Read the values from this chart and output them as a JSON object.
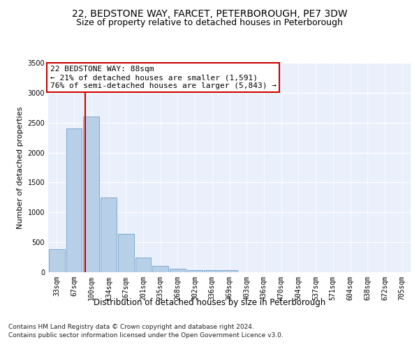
{
  "title1": "22, BEDSTONE WAY, FARCET, PETERBOROUGH, PE7 3DW",
  "title2": "Size of property relative to detached houses in Peterborough",
  "xlabel": "Distribution of detached houses by size in Peterborough",
  "ylabel": "Number of detached properties",
  "categories": [
    "33sqm",
    "67sqm",
    "100sqm",
    "134sqm",
    "167sqm",
    "201sqm",
    "235sqm",
    "268sqm",
    "302sqm",
    "336sqm",
    "369sqm",
    "403sqm",
    "436sqm",
    "470sqm",
    "504sqm",
    "537sqm",
    "571sqm",
    "604sqm",
    "638sqm",
    "672sqm",
    "705sqm"
  ],
  "values": [
    390,
    2400,
    2600,
    1250,
    640,
    250,
    105,
    55,
    40,
    30,
    30,
    0,
    0,
    0,
    0,
    0,
    0,
    0,
    0,
    0,
    0
  ],
  "bar_color": "#b8cfe8",
  "bar_edge_color": "#7fa8cc",
  "annotation_line1": "22 BEDSTONE WAY: 88sqm",
  "annotation_line2": "← 21% of detached houses are smaller (1,591)",
  "annotation_line3": "76% of semi-detached houses are larger (5,843) →",
  "vline_x_index": 1.65,
  "vline_color": "#cc0000",
  "ylim": [
    0,
    3500
  ],
  "yticks": [
    0,
    500,
    1000,
    1500,
    2000,
    2500,
    3000,
    3500
  ],
  "bg_color": "#eaf0fb",
  "footer1": "Contains HM Land Registry data © Crown copyright and database right 2024.",
  "footer2": "Contains public sector information licensed under the Open Government Licence v3.0.",
  "title1_fontsize": 10,
  "title2_fontsize": 9,
  "annotation_fontsize": 8,
  "tick_fontsize": 7,
  "ylabel_fontsize": 8,
  "xlabel_fontsize": 8.5,
  "footer_fontsize": 6.5
}
